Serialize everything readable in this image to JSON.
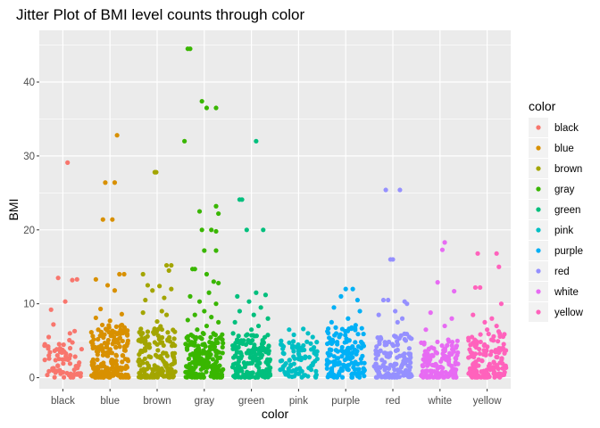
{
  "chart_data": {
    "type": "scatter",
    "title": "Jitter Plot of BMI level counts through color",
    "xlabel": "color",
    "ylabel": "BMI",
    "categories": [
      "black",
      "blue",
      "brown",
      "gray",
      "green",
      "pink",
      "purple",
      "red",
      "white",
      "yellow"
    ],
    "ylim": [
      -1.5,
      47
    ],
    "yticks": [
      0,
      10,
      20,
      30,
      40
    ],
    "grid": true,
    "legend": {
      "title": "color",
      "position": "right",
      "entries": [
        "black",
        "blue",
        "brown",
        "gray",
        "green",
        "pink",
        "purple",
        "red",
        "white",
        "yellow"
      ]
    },
    "colors": {
      "black": "#F8766D",
      "blue": "#D89000",
      "brown": "#A3A500",
      "gray": "#39B600",
      "green": "#00BF7D",
      "pink": "#00BFC4",
      "purple": "#00B0F6",
      "red": "#9590FF",
      "white": "#E76BF3",
      "yellow": "#FF62BC"
    },
    "series": [
      {
        "category": "black",
        "count": 70,
        "core_max": 5,
        "points": [
          [
            0.1,
            29.1
          ],
          [
            -0.25,
            9.2
          ],
          [
            0.05,
            10.3
          ],
          [
            0.2,
            13.2
          ],
          [
            -0.1,
            13.5
          ],
          [
            0.3,
            13.3
          ],
          [
            -0.2,
            7.2
          ],
          [
            0.15,
            6.0
          ],
          [
            -0.3,
            5.5
          ],
          [
            0.25,
            6.3
          ]
        ]
      },
      {
        "category": "blue",
        "count": 190,
        "core_max": 7,
        "points": [
          [
            0.15,
            32.8
          ],
          [
            -0.1,
            26.4
          ],
          [
            0.1,
            26.4
          ],
          [
            -0.15,
            21.4
          ],
          [
            0.05,
            21.4
          ],
          [
            0.2,
            14.0
          ],
          [
            0.3,
            14.0
          ],
          [
            -0.3,
            13.3
          ],
          [
            -0.05,
            12.5
          ],
          [
            0.1,
            11.8
          ],
          [
            -0.2,
            9.3
          ],
          [
            0.25,
            8.6
          ],
          [
            0.0,
            7.7
          ],
          [
            -0.3,
            8.1
          ]
        ]
      },
      {
        "category": "brown",
        "count": 170,
        "core_max": 7,
        "points": [
          [
            -0.05,
            27.8
          ],
          [
            -0.02,
            27.8
          ],
          [
            -0.3,
            14.0
          ],
          [
            0.2,
            15.2
          ],
          [
            0.3,
            15.2
          ],
          [
            0.25,
            14.5
          ],
          [
            -0.2,
            12.5
          ],
          [
            0.05,
            12.4
          ],
          [
            -0.1,
            11.8
          ],
          [
            0.3,
            12.0
          ],
          [
            -0.25,
            10.5
          ],
          [
            0.15,
            10.8
          ],
          [
            0.1,
            9.0
          ],
          [
            -0.3,
            8.8
          ],
          [
            0.2,
            8.5
          ],
          [
            0.0,
            7.6
          ]
        ]
      },
      {
        "category": "gray",
        "count": 190,
        "core_max": 6,
        "points": [
          [
            -0.35,
            44.5
          ],
          [
            -0.3,
            44.5
          ],
          [
            -0.42,
            32.0
          ],
          [
            -0.05,
            37.4
          ],
          [
            0.05,
            36.5
          ],
          [
            0.25,
            36.5
          ],
          [
            -0.1,
            22.5
          ],
          [
            0.25,
            23.2
          ],
          [
            0.3,
            22.2
          ],
          [
            -0.05,
            20.0
          ],
          [
            0.15,
            20.0
          ],
          [
            0.25,
            19.8
          ],
          [
            0.0,
            17.2
          ],
          [
            0.25,
            17.2
          ],
          [
            -0.25,
            14.7
          ],
          [
            -0.2,
            14.7
          ],
          [
            0.05,
            14.0
          ],
          [
            0.2,
            13.0
          ],
          [
            0.3,
            12.8
          ],
          [
            -0.3,
            11.0
          ],
          [
            0.1,
            11.5
          ],
          [
            -0.1,
            10.3
          ],
          [
            0.25,
            10.0
          ],
          [
            0.0,
            9.0
          ],
          [
            -0.2,
            8.5
          ],
          [
            0.15,
            8.2
          ],
          [
            0.3,
            7.5
          ],
          [
            -0.35,
            7.8
          ],
          [
            0.05,
            7.0
          ],
          [
            -0.15,
            6.5
          ]
        ]
      },
      {
        "category": "green",
        "count": 180,
        "core_max": 6,
        "points": [
          [
            -0.25,
            24.1
          ],
          [
            -0.2,
            24.1
          ],
          [
            0.1,
            32.0
          ],
          [
            0.25,
            20.0
          ],
          [
            -0.1,
            20.0
          ],
          [
            0.3,
            11.2
          ],
          [
            -0.3,
            11.0
          ],
          [
            0.1,
            11.5
          ],
          [
            -0.05,
            10.3
          ],
          [
            0.2,
            9.5
          ],
          [
            -0.25,
            9.0
          ],
          [
            0.05,
            8.5
          ],
          [
            0.35,
            8.0
          ],
          [
            -0.35,
            7.5
          ],
          [
            0.15,
            7.0
          ],
          [
            0.0,
            6.5
          ]
        ]
      },
      {
        "category": "pink",
        "count": 90,
        "core_max": 5,
        "points": [
          [
            0.1,
            6.6
          ],
          [
            -0.2,
            6.5
          ],
          [
            0.2,
            6.0
          ],
          [
            -0.1,
            5.8
          ],
          [
            0.3,
            5.5
          ]
        ]
      },
      {
        "category": "purple",
        "count": 150,
        "core_max": 7,
        "points": [
          [
            0.0,
            12.0
          ],
          [
            0.15,
            12.0
          ],
          [
            -0.1,
            11.0
          ],
          [
            0.25,
            10.5
          ],
          [
            -0.25,
            9.5
          ],
          [
            0.3,
            9.0
          ],
          [
            0.05,
            8.0
          ],
          [
            -0.3,
            7.5
          ]
        ]
      },
      {
        "category": "red",
        "count": 140,
        "core_max": 6,
        "points": [
          [
            -0.15,
            25.4
          ],
          [
            0.15,
            25.4
          ],
          [
            -0.05,
            16.0
          ],
          [
            0.0,
            16.0
          ],
          [
            -0.2,
            10.5
          ],
          [
            -0.1,
            10.5
          ],
          [
            0.25,
            10.3
          ],
          [
            0.3,
            10.0
          ],
          [
            0.05,
            9.0
          ],
          [
            -0.3,
            8.5
          ],
          [
            0.2,
            8.0
          ],
          [
            0.1,
            7.5
          ]
        ]
      },
      {
        "category": "white",
        "count": 130,
        "core_max": 5,
        "points": [
          [
            0.1,
            18.3
          ],
          [
            0.05,
            17.3
          ],
          [
            -0.05,
            12.9
          ],
          [
            0.3,
            11.7
          ],
          [
            -0.2,
            8.8
          ],
          [
            0.25,
            8.0
          ],
          [
            0.1,
            7.0
          ],
          [
            -0.3,
            6.5
          ]
        ]
      },
      {
        "category": "yellow",
        "count": 140,
        "core_max": 6,
        "points": [
          [
            -0.2,
            16.8
          ],
          [
            0.2,
            16.8
          ],
          [
            0.25,
            15.0
          ],
          [
            -0.25,
            12.2
          ],
          [
            -0.15,
            12.2
          ],
          [
            0.3,
            10.0
          ],
          [
            -0.3,
            8.5
          ],
          [
            0.1,
            8.0
          ],
          [
            -0.05,
            7.5
          ],
          [
            0.2,
            7.0
          ],
          [
            0.0,
            6.5
          ]
        ]
      }
    ]
  }
}
